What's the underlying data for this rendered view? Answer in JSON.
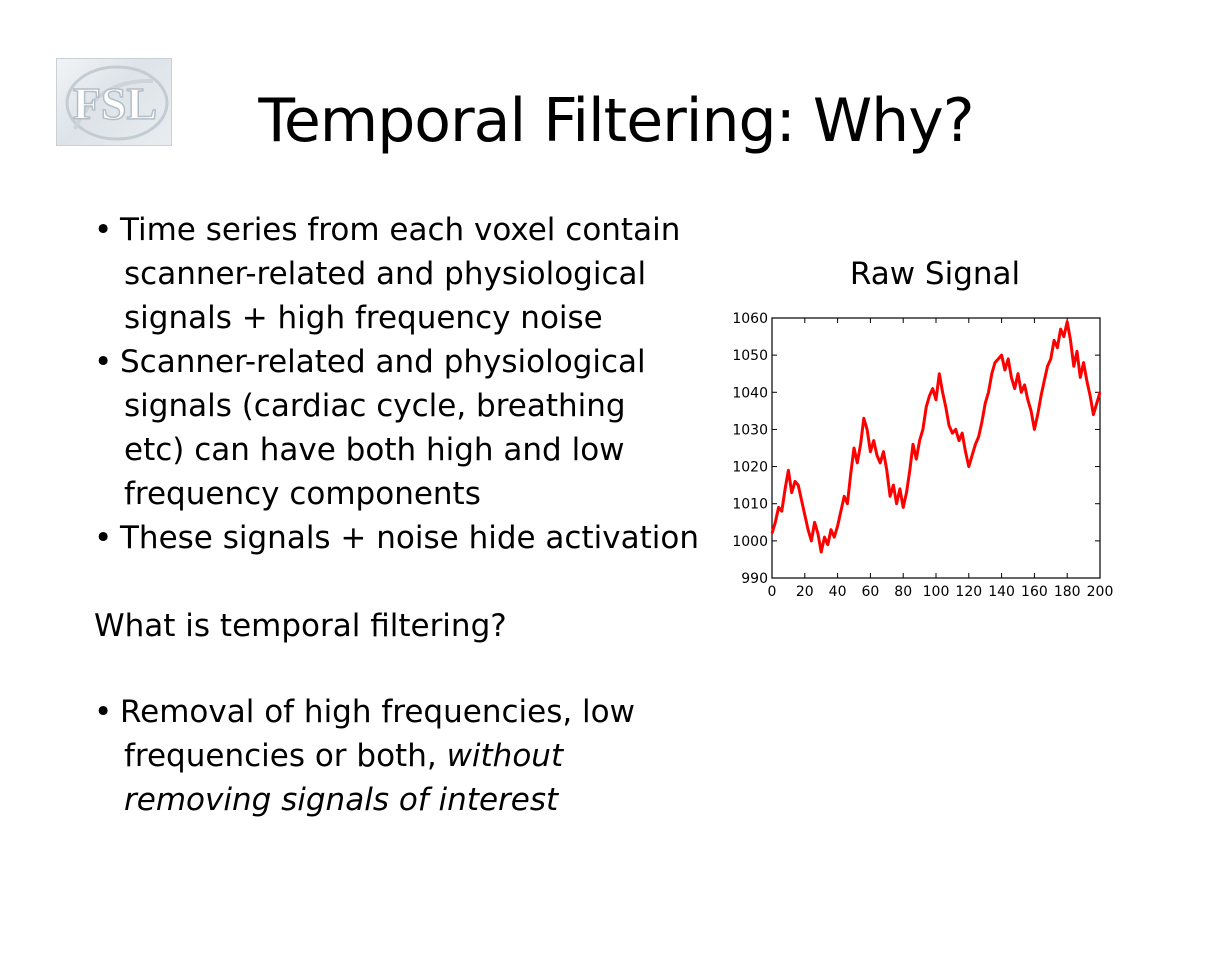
{
  "logo": {
    "text": "FSL"
  },
  "slide": {
    "title": "Temporal Filtering: Why?",
    "bullets_top": [
      {
        "bullet": "•",
        "lines": [
          "Time series from each voxel contain",
          "scanner-related and physiological",
          "signals + high frequency noise"
        ]
      },
      {
        "bullet": "•",
        "lines": [
          "Scanner-related and physiological",
          "signals (cardiac cycle, breathing",
          "etc) can have both high and low",
          "frequency components"
        ]
      },
      {
        "bullet": "•",
        "lines": [
          "These signals + noise hide activation"
        ]
      }
    ],
    "question": "What is temporal filtering?",
    "answer": {
      "bullet": "•",
      "line1": "Removal of high frequencies, low",
      "line2_plain": "frequencies or both, ",
      "line2_italic": "without",
      "line3_italic": "removing signals of interest"
    }
  },
  "chart_data": {
    "type": "line",
    "title": "Raw Signal",
    "xlabel": "",
    "ylabel": "",
    "xlim": [
      0,
      200
    ],
    "ylim": [
      990,
      1060
    ],
    "xticks": [
      0,
      20,
      40,
      60,
      80,
      100,
      120,
      140,
      160,
      180,
      200
    ],
    "yticks": [
      990,
      1000,
      1010,
      1020,
      1030,
      1040,
      1050,
      1060
    ],
    "grid": false,
    "color": "#ff0000",
    "x": [
      0,
      2,
      4,
      6,
      8,
      10,
      12,
      14,
      16,
      18,
      20,
      22,
      24,
      26,
      28,
      30,
      32,
      34,
      36,
      38,
      40,
      42,
      44,
      46,
      48,
      50,
      52,
      54,
      56,
      58,
      60,
      62,
      64,
      66,
      68,
      70,
      72,
      74,
      76,
      78,
      80,
      82,
      84,
      86,
      88,
      90,
      92,
      94,
      96,
      98,
      100,
      102,
      104,
      106,
      108,
      110,
      112,
      114,
      116,
      118,
      120,
      122,
      124,
      126,
      128,
      130,
      132,
      134,
      136,
      138,
      140,
      142,
      144,
      146,
      148,
      150,
      152,
      154,
      156,
      158,
      160,
      162,
      164,
      166,
      168,
      170,
      172,
      174,
      176,
      178,
      180,
      182,
      184,
      186,
      188,
      190,
      192,
      194,
      196,
      198,
      200
    ],
    "y": [
      1002,
      1005,
      1009,
      1008,
      1014,
      1019,
      1013,
      1016,
      1015,
      1011,
      1007,
      1003,
      1000,
      1005,
      1002,
      997,
      1001,
      999,
      1003,
      1001,
      1004,
      1008,
      1012,
      1010,
      1018,
      1025,
      1021,
      1026,
      1033,
      1030,
      1024,
      1027,
      1023,
      1021,
      1024,
      1019,
      1012,
      1015,
      1010,
      1014,
      1009,
      1013,
      1019,
      1026,
      1022,
      1027,
      1030,
      1036,
      1039,
      1041,
      1038,
      1045,
      1040,
      1036,
      1031,
      1029,
      1030,
      1027,
      1029,
      1024,
      1020,
      1023,
      1026,
      1028,
      1032,
      1037,
      1040,
      1045,
      1048,
      1049,
      1050,
      1046,
      1049,
      1044,
      1041,
      1045,
      1040,
      1042,
      1038,
      1035,
      1030,
      1034,
      1039,
      1043,
      1047,
      1049,
      1054,
      1052,
      1057,
      1055,
      1059,
      1054,
      1047,
      1051,
      1044,
      1048,
      1043,
      1039,
      1034,
      1037,
      1040
    ]
  }
}
